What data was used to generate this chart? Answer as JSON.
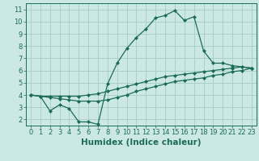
{
  "title": "",
  "xlabel": "Humidex (Indice chaleur)",
  "bg_color": "#cce8e5",
  "grid_color": "#aad0cc",
  "line_color": "#1a6b5a",
  "xlim": [
    -0.5,
    23.5
  ],
  "ylim": [
    1.5,
    11.5
  ],
  "xticks": [
    0,
    1,
    2,
    3,
    4,
    5,
    6,
    7,
    8,
    9,
    10,
    11,
    12,
    13,
    14,
    15,
    16,
    17,
    18,
    19,
    20,
    21,
    22,
    23
  ],
  "yticks": [
    2,
    3,
    4,
    5,
    6,
    7,
    8,
    9,
    10,
    11
  ],
  "line1_x": [
    0,
    1,
    2,
    3,
    4,
    5,
    6,
    7,
    8,
    9,
    10,
    11,
    12,
    13,
    14,
    15,
    16,
    17,
    18,
    19,
    20,
    21,
    22,
    23
  ],
  "line1_y": [
    4.0,
    3.9,
    2.7,
    3.2,
    2.9,
    1.8,
    1.8,
    1.6,
    4.9,
    6.6,
    7.8,
    8.7,
    9.4,
    10.3,
    10.5,
    10.9,
    10.1,
    10.4,
    7.6,
    6.6,
    6.6,
    6.4,
    6.3,
    6.2
  ],
  "line2_x": [
    0,
    1,
    2,
    3,
    4,
    5,
    6,
    7,
    8,
    9,
    10,
    11,
    12,
    13,
    14,
    15,
    16,
    17,
    18,
    19,
    20,
    21,
    22,
    23
  ],
  "line2_y": [
    4.0,
    3.9,
    3.9,
    3.9,
    3.9,
    3.9,
    4.0,
    4.1,
    4.3,
    4.5,
    4.7,
    4.9,
    5.1,
    5.3,
    5.5,
    5.6,
    5.7,
    5.8,
    5.9,
    6.0,
    6.1,
    6.2,
    6.3,
    6.2
  ],
  "line3_x": [
    0,
    1,
    2,
    3,
    4,
    5,
    6,
    7,
    8,
    9,
    10,
    11,
    12,
    13,
    14,
    15,
    16,
    17,
    18,
    19,
    20,
    21,
    22,
    23
  ],
  "line3_y": [
    4.0,
    3.9,
    3.8,
    3.7,
    3.6,
    3.5,
    3.5,
    3.5,
    3.6,
    3.8,
    4.0,
    4.3,
    4.5,
    4.7,
    4.9,
    5.1,
    5.2,
    5.3,
    5.4,
    5.6,
    5.7,
    5.9,
    6.0,
    6.2
  ],
  "tick_fontsize": 6.0,
  "xlabel_fontsize": 7.5,
  "marker_size": 2.5,
  "line_width": 0.9
}
